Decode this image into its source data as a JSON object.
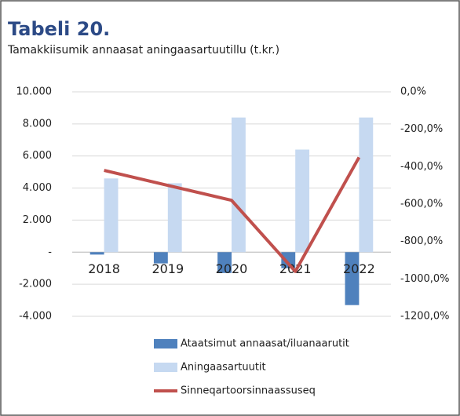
{
  "chart_data": {
    "type": "bar",
    "title": "Tabeli 20.",
    "subtitle": "Tamakkiisumik annaasat aningaasartuutillu  (t.kr.)",
    "categories": [
      "2018",
      "2019",
      "2020",
      "2021",
      "2022"
    ],
    "series": [
      {
        "name": "Ataatsimut annaasat/iluanaarutit",
        "type": "bar",
        "color": "#4f81bd",
        "values": [
          -150,
          -700,
          -1300,
          -1000,
          -3300
        ]
      },
      {
        "name": "Aningaasartuutit",
        "type": "bar",
        "color": "#c6d9f1",
        "values": [
          4600,
          4300,
          8400,
          6400,
          8400
        ]
      },
      {
        "name": "Sinneqartoorsinnaassuseq",
        "type": "line",
        "axis": "y2",
        "color": "#c0504d",
        "values": [
          -420,
          -500,
          -580,
          -960,
          -350
        ]
      }
    ],
    "ylim": [
      -4000,
      10000
    ],
    "yticks": [
      {
        "value": -4000,
        "label": "-4.000"
      },
      {
        "value": -2000,
        "label": "-2.000"
      },
      {
        "value": 0,
        "label": "-"
      },
      {
        "value": 2000,
        "label": "2.000"
      },
      {
        "value": 4000,
        "label": "4.000"
      },
      {
        "value": 6000,
        "label": "6.000"
      },
      {
        "value": 8000,
        "label": "8.000"
      },
      {
        "value": 10000,
        "label": "10.000"
      }
    ],
    "y2lim": [
      -1200,
      0
    ],
    "y2ticks": [
      {
        "value": -1200,
        "label": "-1200,0%"
      },
      {
        "value": -1000,
        "label": "-1000,0%"
      },
      {
        "value": -800,
        "label": "-800,0%"
      },
      {
        "value": -600,
        "label": "-600,0%"
      },
      {
        "value": -400,
        "label": "-400,0%"
      },
      {
        "value": -200,
        "label": "-200,0%"
      },
      {
        "value": 0,
        "label": "0,0%"
      }
    ],
    "grid": true
  }
}
